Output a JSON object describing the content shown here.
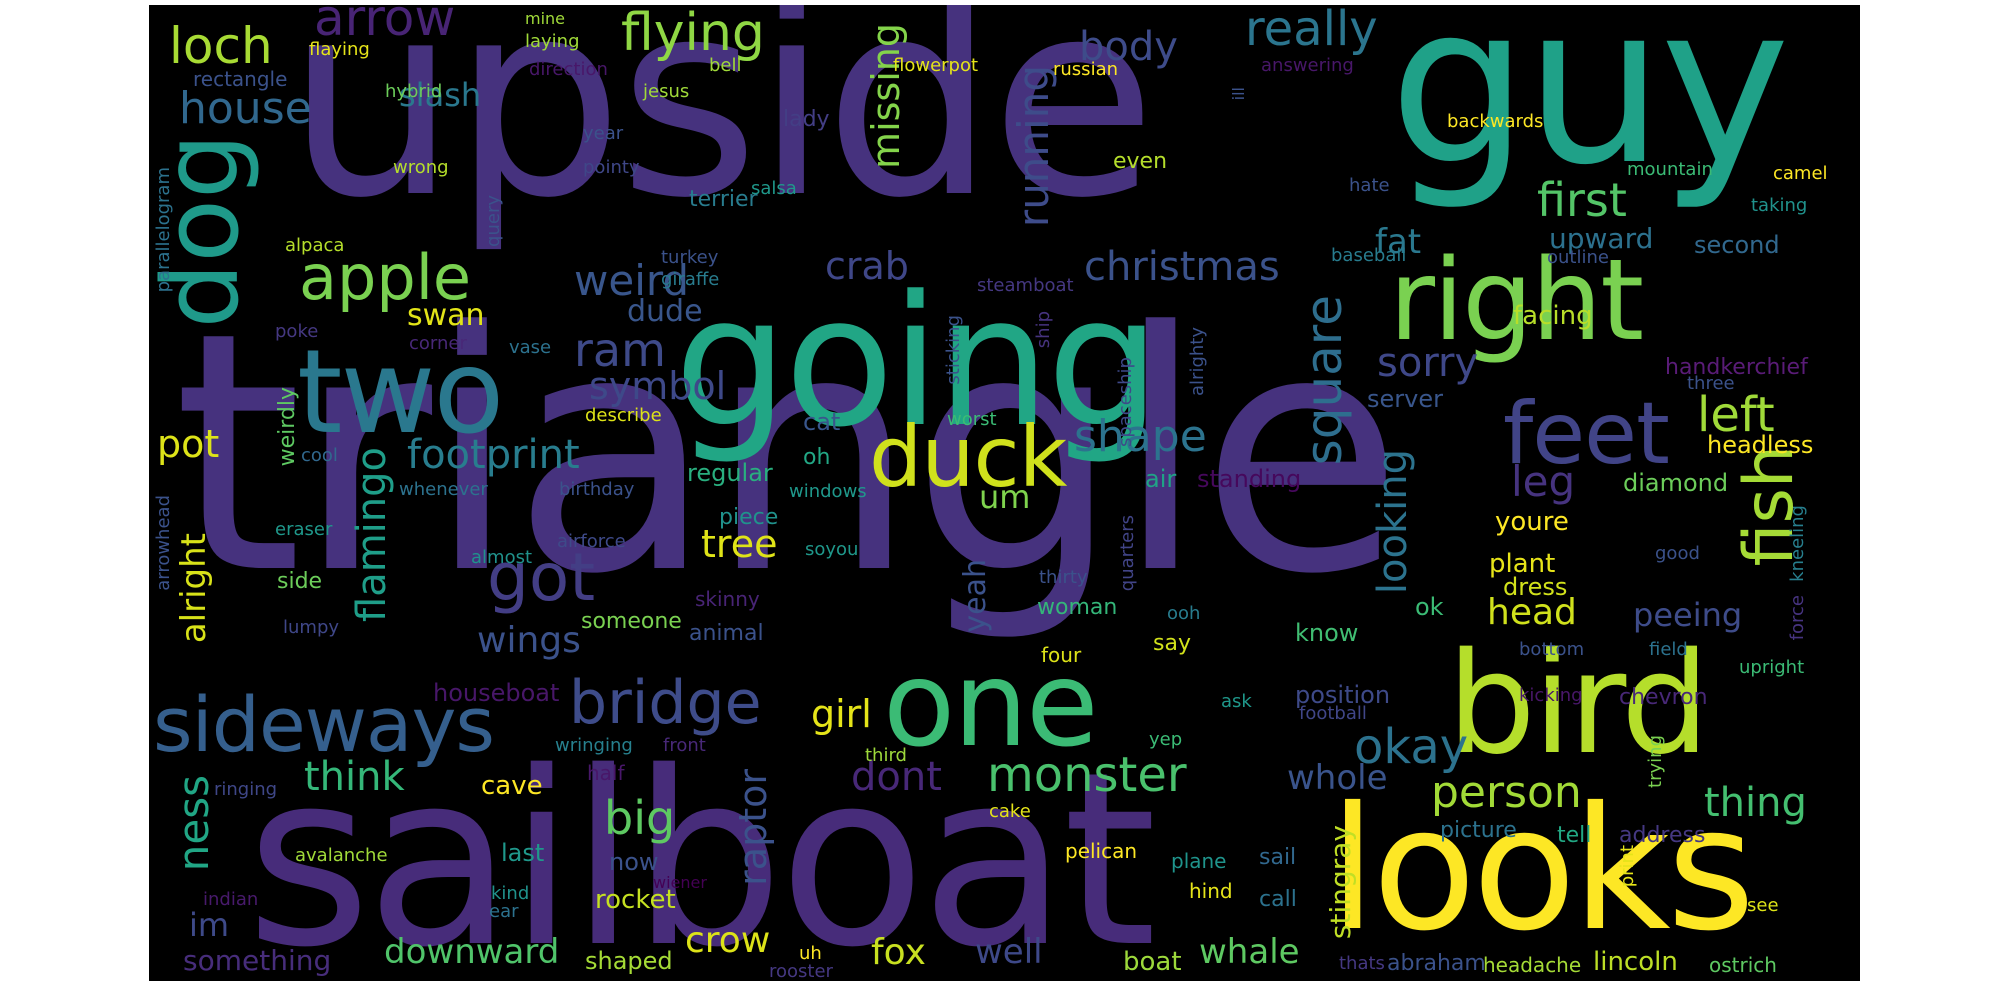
{
  "words": [
    {
      "id": "triangle",
      "text": "triangle",
      "color": "#46327e"
    },
    {
      "id": "upside",
      "text": "upside",
      "color": "#46327e"
    },
    {
      "id": "sailboat",
      "text": "sailboat",
      "color": "#472c7a"
    },
    {
      "id": "going",
      "text": "going",
      "color": "#21a685"
    },
    {
      "id": "guy",
      "text": "guy",
      "color": "#1fa188"
    },
    {
      "id": "looks",
      "text": "looks",
      "color": "#fde725"
    },
    {
      "id": "bird",
      "text": "bird",
      "color": "#b5de2b"
    },
    {
      "id": "one",
      "text": "one",
      "color": "#3bbb75"
    },
    {
      "id": "two",
      "text": "two",
      "color": "#2a788e"
    },
    {
      "id": "right",
      "text": "right",
      "color": "#7ad151"
    },
    {
      "id": "dog",
      "text": "dog",
      "color": "#1f9a8a"
    },
    {
      "id": "feet",
      "text": "feet",
      "color": "#414487"
    },
    {
      "id": "duck",
      "text": "duck",
      "color": "#d0e11c"
    },
    {
      "id": "sideways",
      "text": "sideways",
      "color": "#355f8d"
    },
    {
      "id": "bridge",
      "text": "bridge",
      "color": "#3e4c8a"
    },
    {
      "id": "apple",
      "text": "apple",
      "color": "#7ad151"
    },
    {
      "id": "got",
      "text": "got",
      "color": "#433e85"
    },
    {
      "id": "fish",
      "text": "fish",
      "color": "#a5db36"
    },
    {
      "id": "monster",
      "text": "monster",
      "color": "#4ac16d"
    },
    {
      "id": "okay",
      "text": "okay",
      "color": "#2c728e"
    },
    {
      "id": "person",
      "text": "person",
      "color": "#a2da37"
    },
    {
      "id": "christmas",
      "text": "christmas",
      "color": "#3b528b"
    },
    {
      "id": "square",
      "text": "square",
      "color": "#2e6e8e"
    },
    {
      "id": "shape",
      "text": "shape",
      "color": "#2c738e"
    },
    {
      "id": "left",
      "text": "left",
      "color": "#a0da39"
    },
    {
      "id": "first",
      "text": "first",
      "color": "#54c568"
    },
    {
      "id": "flying",
      "text": "flying",
      "color": "#8fd744"
    },
    {
      "id": "really",
      "text": "really",
      "color": "#2b758e"
    },
    {
      "id": "arrow",
      "text": "arrow",
      "color": "#482475"
    },
    {
      "id": "loch",
      "text": "loch",
      "color": "#a8db34"
    },
    {
      "id": "house",
      "text": "house",
      "color": "#31688e"
    },
    {
      "id": "footprint",
      "text": "footprint",
      "color": "#287d8e"
    },
    {
      "id": "weird",
      "text": "weird",
      "color": "#39568c"
    },
    {
      "id": "ram",
      "text": "ram",
      "color": "#3e4a89"
    },
    {
      "id": "symbol",
      "text": "symbol",
      "color": "#3e4989"
    },
    {
      "id": "crab",
      "text": "crab",
      "color": "#3f4788"
    },
    {
      "id": "body",
      "text": "body",
      "color": "#3e4c8a"
    },
    {
      "id": "running",
      "text": "running",
      "color": "#3e4c8a"
    },
    {
      "id": "missing",
      "text": "missing",
      "color": "#84d44b"
    },
    {
      "id": "slash",
      "text": "slash",
      "color": "#2a788e"
    },
    {
      "id": "flamingo",
      "text": "flamingo",
      "color": "#1f9e89"
    },
    {
      "id": "sorry",
      "text": "sorry",
      "color": "#3f4889"
    },
    {
      "id": "looking",
      "text": "looking",
      "color": "#2c738e"
    },
    {
      "id": "leg",
      "text": "leg",
      "color": "#46337f"
    },
    {
      "id": "tree",
      "text": "tree",
      "color": "#dfe318"
    },
    {
      "id": "thing",
      "text": "thing",
      "color": "#44bf70"
    },
    {
      "id": "whole",
      "text": "whole",
      "color": "#3a548c"
    },
    {
      "id": "dont",
      "text": "dont",
      "color": "#482878"
    },
    {
      "id": "big",
      "text": "big",
      "color": "#5ec962"
    },
    {
      "id": "think",
      "text": "think",
      "color": "#35b779"
    },
    {
      "id": "ness",
      "text": "ness",
      "color": "#21a685"
    },
    {
      "id": "alright",
      "text": "alright",
      "color": "#d8e219"
    },
    {
      "id": "wings",
      "text": "wings",
      "color": "#3b528b"
    },
    {
      "id": "head",
      "text": "head",
      "color": "#d0e11c"
    },
    {
      "id": "raptor",
      "text": "raptor",
      "color": "#3b528b"
    },
    {
      "id": "girl",
      "text": "girl",
      "color": "#e5e419"
    },
    {
      "id": "pot",
      "text": "pot",
      "color": "#dde318"
    },
    {
      "id": "dude",
      "text": "dude",
      "color": "#39568c"
    },
    {
      "id": "swan",
      "text": "swan",
      "color": "#e2e418"
    },
    {
      "id": "crow",
      "text": "crow",
      "color": "#dde318"
    },
    {
      "id": "fox",
      "text": "fox",
      "color": "#c8e020"
    },
    {
      "id": "well",
      "text": "well",
      "color": "#3e4989"
    },
    {
      "id": "whale",
      "text": "whale",
      "color": "#5ec962"
    },
    {
      "id": "downward",
      "text": "downward",
      "color": "#50c46a"
    },
    {
      "id": "fat",
      "text": "fat",
      "color": "#2a788e"
    },
    {
      "id": "upward",
      "text": "upward",
      "color": "#2c718e"
    },
    {
      "id": "second",
      "text": "second",
      "color": "#31688e"
    },
    {
      "id": "facing",
      "text": "facing",
      "color": "#b8de29"
    },
    {
      "id": "peeing",
      "text": "peeing",
      "color": "#3e4c8a"
    },
    {
      "id": "im",
      "text": "im",
      "color": "#3e4a89"
    },
    {
      "id": "yeah",
      "text": "yeah",
      "color": "#3b528b"
    },
    {
      "id": "um",
      "text": "um",
      "color": "#7fd34e"
    },
    {
      "id": "something",
      "text": "something",
      "color": "#472d7b"
    },
    {
      "id": "shaped",
      "text": "shaped",
      "color": "#a5db36"
    },
    {
      "id": "boat",
      "text": "boat",
      "color": "#9dd93b"
    },
    {
      "id": "rocket",
      "text": "rocket",
      "color": "#c5e021"
    },
    {
      "id": "abraham",
      "text": "abraham",
      "color": "#3b528b"
    },
    {
      "id": "lincoln",
      "text": "lincoln",
      "color": "#bddf26"
    },
    {
      "id": "headache",
      "text": "headache",
      "color": "#a5db36"
    },
    {
      "id": "ostrich",
      "text": "ostrich",
      "color": "#5ec962"
    },
    {
      "id": "stingray",
      "text": "stingray",
      "color": "#c0df25"
    },
    {
      "id": "cave",
      "text": "cave",
      "color": "#fde725"
    },
    {
      "id": "plant",
      "text": "plant",
      "color": "#e7e419"
    },
    {
      "id": "dress",
      "text": "dress",
      "color": "#d2e21b"
    },
    {
      "id": "youre",
      "text": "youre",
      "color": "#fde725"
    },
    {
      "id": "headless",
      "text": "headless",
      "color": "#fde725"
    },
    {
      "id": "diamond",
      "text": "diamond",
      "color": "#6ccd5a"
    },
    {
      "id": "standing",
      "text": "standing",
      "color": "#46085c"
    },
    {
      "id": "server",
      "text": "server",
      "color": "#39568c"
    },
    {
      "id": "handkerchief",
      "text": "handkerchief",
      "color": "#5a1c78"
    },
    {
      "id": "three",
      "text": "three",
      "color": "#3b528b"
    },
    {
      "id": "air",
      "text": "air",
      "color": "#20a386"
    },
    {
      "id": "regular",
      "text": "regular",
      "color": "#29af7f"
    },
    {
      "id": "cat",
      "text": "cat",
      "color": "#39568c"
    },
    {
      "id": "oh",
      "text": "oh",
      "color": "#22a785"
    },
    {
      "id": "piece",
      "text": "piece",
      "color": "#20928c"
    },
    {
      "id": "woman",
      "text": "woman",
      "color": "#34b679"
    },
    {
      "id": "say",
      "text": "say",
      "color": "#d2e21b"
    },
    {
      "id": "four",
      "text": "four",
      "color": "#dde318"
    },
    {
      "id": "ok",
      "text": "ok",
      "color": "#3bbb75"
    },
    {
      "id": "know",
      "text": "know",
      "color": "#40bd72"
    },
    {
      "id": "position",
      "text": "position",
      "color": "#3e4a89"
    },
    {
      "id": "football",
      "text": "football",
      "color": "#404688"
    },
    {
      "id": "chevron",
      "text": "chevron",
      "color": "#482878"
    },
    {
      "id": "picture",
      "text": "picture",
      "color": "#2c728e"
    },
    {
      "id": "address",
      "text": "address",
      "color": "#453882"
    },
    {
      "id": "tell",
      "text": "tell",
      "color": "#22a884"
    },
    {
      "id": "sail",
      "text": "sail",
      "color": "#31688e"
    },
    {
      "id": "call",
      "text": "call",
      "color": "#2c728e"
    },
    {
      "id": "plane",
      "text": "plane",
      "color": "#1f948c"
    },
    {
      "id": "hind",
      "text": "hind",
      "color": "#e5e419"
    },
    {
      "id": "pelican",
      "text": "pelican",
      "color": "#fde725"
    },
    {
      "id": "last",
      "text": "last",
      "color": "#1f988b"
    },
    {
      "id": "now",
      "text": "now",
      "color": "#3b528b"
    },
    {
      "id": "kind",
      "text": "kind",
      "color": "#20928c"
    },
    {
      "id": "ear",
      "text": "ear",
      "color": "#2c728e"
    },
    {
      "id": "uh",
      "text": "uh",
      "color": "#fde725"
    },
    {
      "id": "rooster",
      "text": "rooster",
      "color": "#453882"
    },
    {
      "id": "thats",
      "text": "thats",
      "color": "#453882"
    },
    {
      "id": "houseboat",
      "text": "houseboat",
      "color": "#481769"
    },
    {
      "id": "half",
      "text": "half",
      "color": "#481769"
    },
    {
      "id": "front",
      "text": "front",
      "color": "#482878"
    },
    {
      "id": "wringing",
      "text": "wringing",
      "color": "#27808e"
    },
    {
      "id": "ringing",
      "text": "ringing",
      "color": "#3f4788"
    },
    {
      "id": "avalanche",
      "text": "avalanche",
      "color": "#a0da39"
    },
    {
      "id": "indian",
      "text": "indian",
      "color": "#481a6c"
    },
    {
      "id": "wiener",
      "text": "wiener",
      "color": "#440154"
    },
    {
      "id": "cake",
      "text": "cake",
      "color": "#e5e419"
    },
    {
      "id": "third",
      "text": "third",
      "color": "#9dd93b"
    },
    {
      "id": "someone",
      "text": "someone",
      "color": "#7ad151"
    },
    {
      "id": "animal",
      "text": "animal",
      "color": "#3b528b"
    },
    {
      "id": "skinny",
      "text": "skinny",
      "color": "#482475"
    },
    {
      "id": "side",
      "text": "side",
      "color": "#6ccd5a"
    },
    {
      "id": "lumpy",
      "text": "lumpy",
      "color": "#3f4788"
    },
    {
      "id": "almost",
      "text": "almost",
      "color": "#20928c"
    },
    {
      "id": "airforce",
      "text": "airforce",
      "color": "#3e4a89"
    },
    {
      "id": "soyou",
      "text": "soyou",
      "color": "#1f988b"
    },
    {
      "id": "thirty",
      "text": "thirty",
      "color": "#3b528b"
    },
    {
      "id": "quarters",
      "text": "quarters",
      "color": "#414487"
    },
    {
      "id": "ooh",
      "text": "ooh",
      "color": "#287c8e"
    },
    {
      "id": "ask",
      "text": "ask",
      "color": "#1f988b"
    },
    {
      "id": "yep",
      "text": "yep",
      "color": "#3bbb75"
    },
    {
      "id": "kicking",
      "text": "kicking",
      "color": "#481769"
    },
    {
      "id": "bottom",
      "text": "bottom",
      "color": "#3b528b"
    },
    {
      "id": "field",
      "text": "field",
      "color": "#2c728e"
    },
    {
      "id": "upright",
      "text": "upright",
      "color": "#3bbb75"
    },
    {
      "id": "force",
      "text": "force",
      "color": "#46337f"
    },
    {
      "id": "kneeling",
      "text": "kneeling",
      "color": "#277f8e"
    },
    {
      "id": "good",
      "text": "good",
      "color": "#3b528b"
    },
    {
      "id": "trying",
      "text": "trying",
      "color": "#7ad151"
    },
    {
      "id": "print",
      "text": "print",
      "color": "#e5e419"
    },
    {
      "id": "see",
      "text": "see",
      "color": "#dde318"
    },
    {
      "id": "birthday",
      "text": "birthday",
      "color": "#3b528b"
    },
    {
      "id": "windows",
      "text": "windows",
      "color": "#1f988b"
    },
    {
      "id": "whenever",
      "text": "whenever",
      "color": "#2c728e"
    },
    {
      "id": "weirdly",
      "text": "weirdly",
      "color": "#5ec962"
    },
    {
      "id": "cool",
      "text": "cool",
      "color": "#31688e"
    },
    {
      "id": "eraser",
      "text": "eraser",
      "color": "#1f988b"
    },
    {
      "id": "arrowhead",
      "text": "arrowhead",
      "color": "#3b528b"
    },
    {
      "id": "describe",
      "text": "describe",
      "color": "#dde318"
    },
    {
      "id": "worst",
      "text": "worst",
      "color": "#3bbb75"
    },
    {
      "id": "corner",
      "text": "corner",
      "color": "#482878"
    },
    {
      "id": "vase",
      "text": "vase",
      "color": "#2c728e"
    },
    {
      "id": "poke",
      "text": "poke",
      "color": "#453882"
    },
    {
      "id": "sticking",
      "text": "sticking",
      "color": "#3b528b"
    },
    {
      "id": "spaceship",
      "text": "spaceship",
      "color": "#3e4989"
    },
    {
      "id": "alrighty",
      "text": "alrighty",
      "color": "#3b528b"
    },
    {
      "id": "ship",
      "text": "ship",
      "color": "#46337f"
    },
    {
      "id": "steamboat",
      "text": "steamboat",
      "color": "#453882"
    },
    {
      "id": "turkey",
      "text": "turkey",
      "color": "#3b528b"
    },
    {
      "id": "giraffe",
      "text": "giraffe",
      "color": "#287c8e"
    },
    {
      "id": "alpaca",
      "text": "alpaca",
      "color": "#b5de2b"
    },
    {
      "id": "query",
      "text": "query",
      "color": "#3b528b"
    },
    {
      "id": "parallelogram",
      "text": "parallelogram",
      "color": "#2c728e"
    },
    {
      "id": "wrong",
      "text": "wrong",
      "color": "#b5de2b"
    },
    {
      "id": "pointy",
      "text": "pointy",
      "color": "#3f4788"
    },
    {
      "id": "year",
      "text": "year",
      "color": "#3b528b"
    },
    {
      "id": "salsa",
      "text": "salsa",
      "color": "#1f988b"
    },
    {
      "id": "terrier",
      "text": "terrier",
      "color": "#287c8e"
    },
    {
      "id": "lady",
      "text": "lady",
      "color": "#433e85"
    },
    {
      "id": "hybrid",
      "text": "hybrid",
      "color": "#6ccd5a"
    },
    {
      "id": "jesus",
      "text": "jesus",
      "color": "#a0da39"
    },
    {
      "id": "rectangle",
      "text": "rectangle",
      "color": "#3b528b"
    },
    {
      "id": "flaying",
      "text": "flaying",
      "color": "#e5e419"
    },
    {
      "id": "laying",
      "text": "laying",
      "color": "#a0da39"
    },
    {
      "id": "mine",
      "text": "mine",
      "color": "#a0da39"
    },
    {
      "id": "direction",
      "text": "direction",
      "color": "#481769"
    },
    {
      "id": "bell",
      "text": "bell",
      "color": "#a0da39"
    },
    {
      "id": "flowerpot",
      "text": "flowerpot",
      "color": "#e5e419"
    },
    {
      "id": "russian",
      "text": "russian",
      "color": "#fde725"
    },
    {
      "id": "ill",
      "text": "ill",
      "color": "#3b528b"
    },
    {
      "id": "answering",
      "text": "answering",
      "color": "#481769"
    },
    {
      "id": "backwards",
      "text": "backwards",
      "color": "#fde725"
    },
    {
      "id": "mountain",
      "text": "mountain",
      "color": "#3bbb75"
    },
    {
      "id": "camel",
      "text": "camel",
      "color": "#fde725"
    },
    {
      "id": "hate",
      "text": "hate",
      "color": "#3b528b"
    },
    {
      "id": "taking",
      "text": "taking",
      "color": "#20928c"
    },
    {
      "id": "baseball",
      "text": "baseball",
      "color": "#287c8e"
    },
    {
      "id": "outline",
      "text": "outline",
      "color": "#3b528b"
    },
    {
      "id": "even",
      "text": "even",
      "color": "#b5de2b"
    }
  ]
}
